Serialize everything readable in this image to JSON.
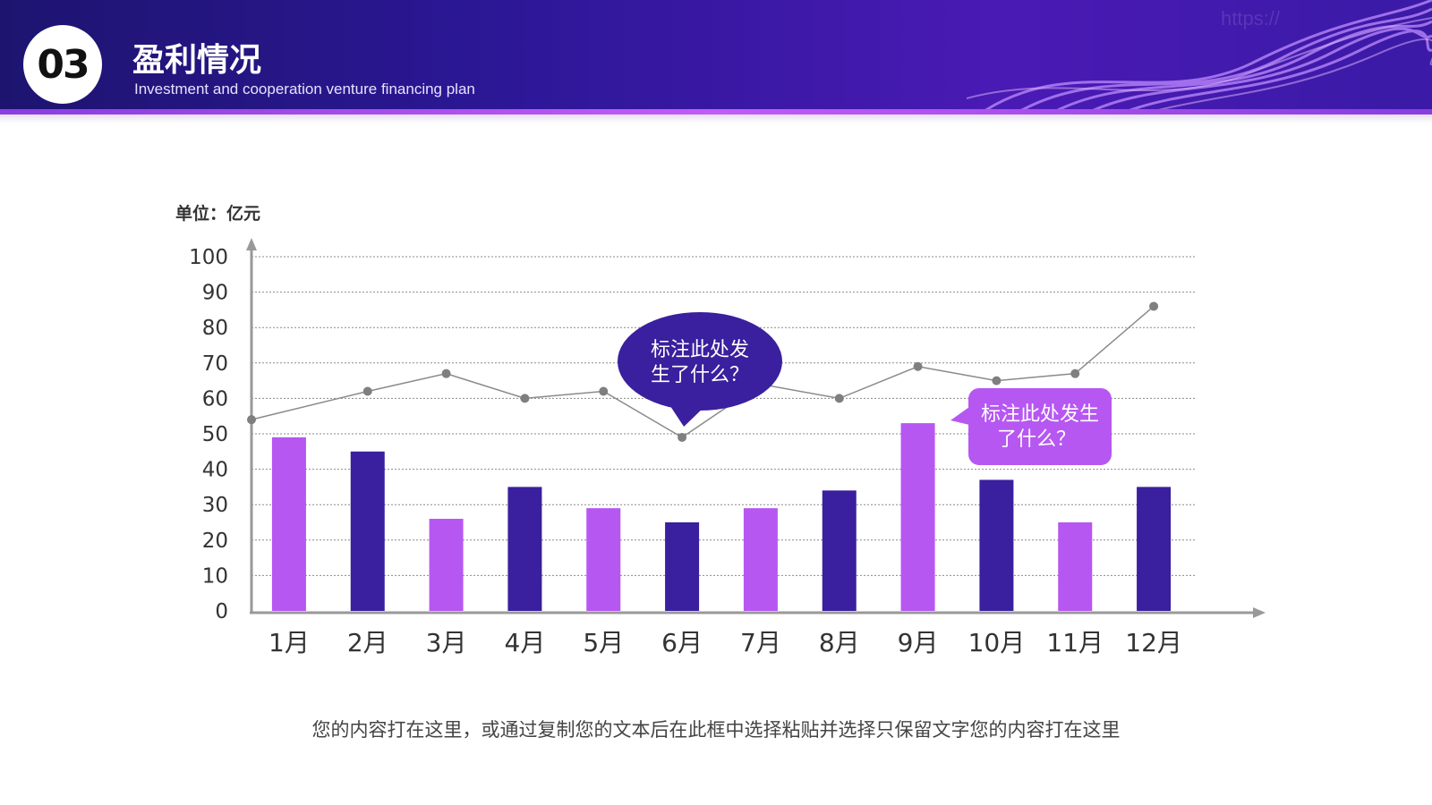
{
  "header": {
    "badge_number": "03",
    "title": "盈利情况",
    "subtitle": "Investment and cooperation venture financing plan",
    "watermark": "https://",
    "colors": {
      "bg_start": "#1d1470",
      "bg_end": "#4a1ab5",
      "accent": "#c25cf5"
    }
  },
  "chart_data": {
    "type": "bar",
    "unit_label": "单位：亿元",
    "categories": [
      "1月",
      "2月",
      "3月",
      "4月",
      "5月",
      "6月",
      "7月",
      "8月",
      "9月",
      "10月",
      "11月",
      "12月"
    ],
    "series": [
      {
        "type": "bar",
        "values": [
          49,
          45,
          26,
          35,
          29,
          25,
          29,
          34,
          53,
          37,
          25,
          35
        ],
        "colors": [
          "#b657f2",
          "#3a1f9e",
          "#b657f2",
          "#3a1f9e",
          "#b657f2",
          "#3a1f9e",
          "#b657f2",
          "#3a1f9e",
          "#b657f2",
          "#3a1f9e",
          "#b657f2",
          "#3a1f9e"
        ]
      },
      {
        "type": "line",
        "color": "#8a8a8a",
        "values": [
          54,
          62,
          67,
          60,
          62,
          49,
          64,
          60,
          69,
          65,
          67,
          86
        ]
      }
    ],
    "y_ticks": [
      0,
      10,
      20,
      30,
      40,
      50,
      60,
      70,
      80,
      90,
      100
    ],
    "ylim": [
      0,
      100
    ],
    "grid": true,
    "annotations": [
      {
        "text": "标注此处发生了什么？",
        "category": "6月",
        "color": "#3a1f9e"
      },
      {
        "text": "标注此处发生了什么？",
        "category": "9月",
        "color": "#b657f2"
      }
    ],
    "annotation_lines": [
      [
        "标注此处发",
        "生了什么？"
      ],
      [
        "标注此处发生",
        "了什么？"
      ]
    ]
  },
  "footer": {
    "text": "您的内容打在这里，或通过复制您的文本后在此框中选择粘贴并选择只保留文字您的内容打在这里"
  }
}
